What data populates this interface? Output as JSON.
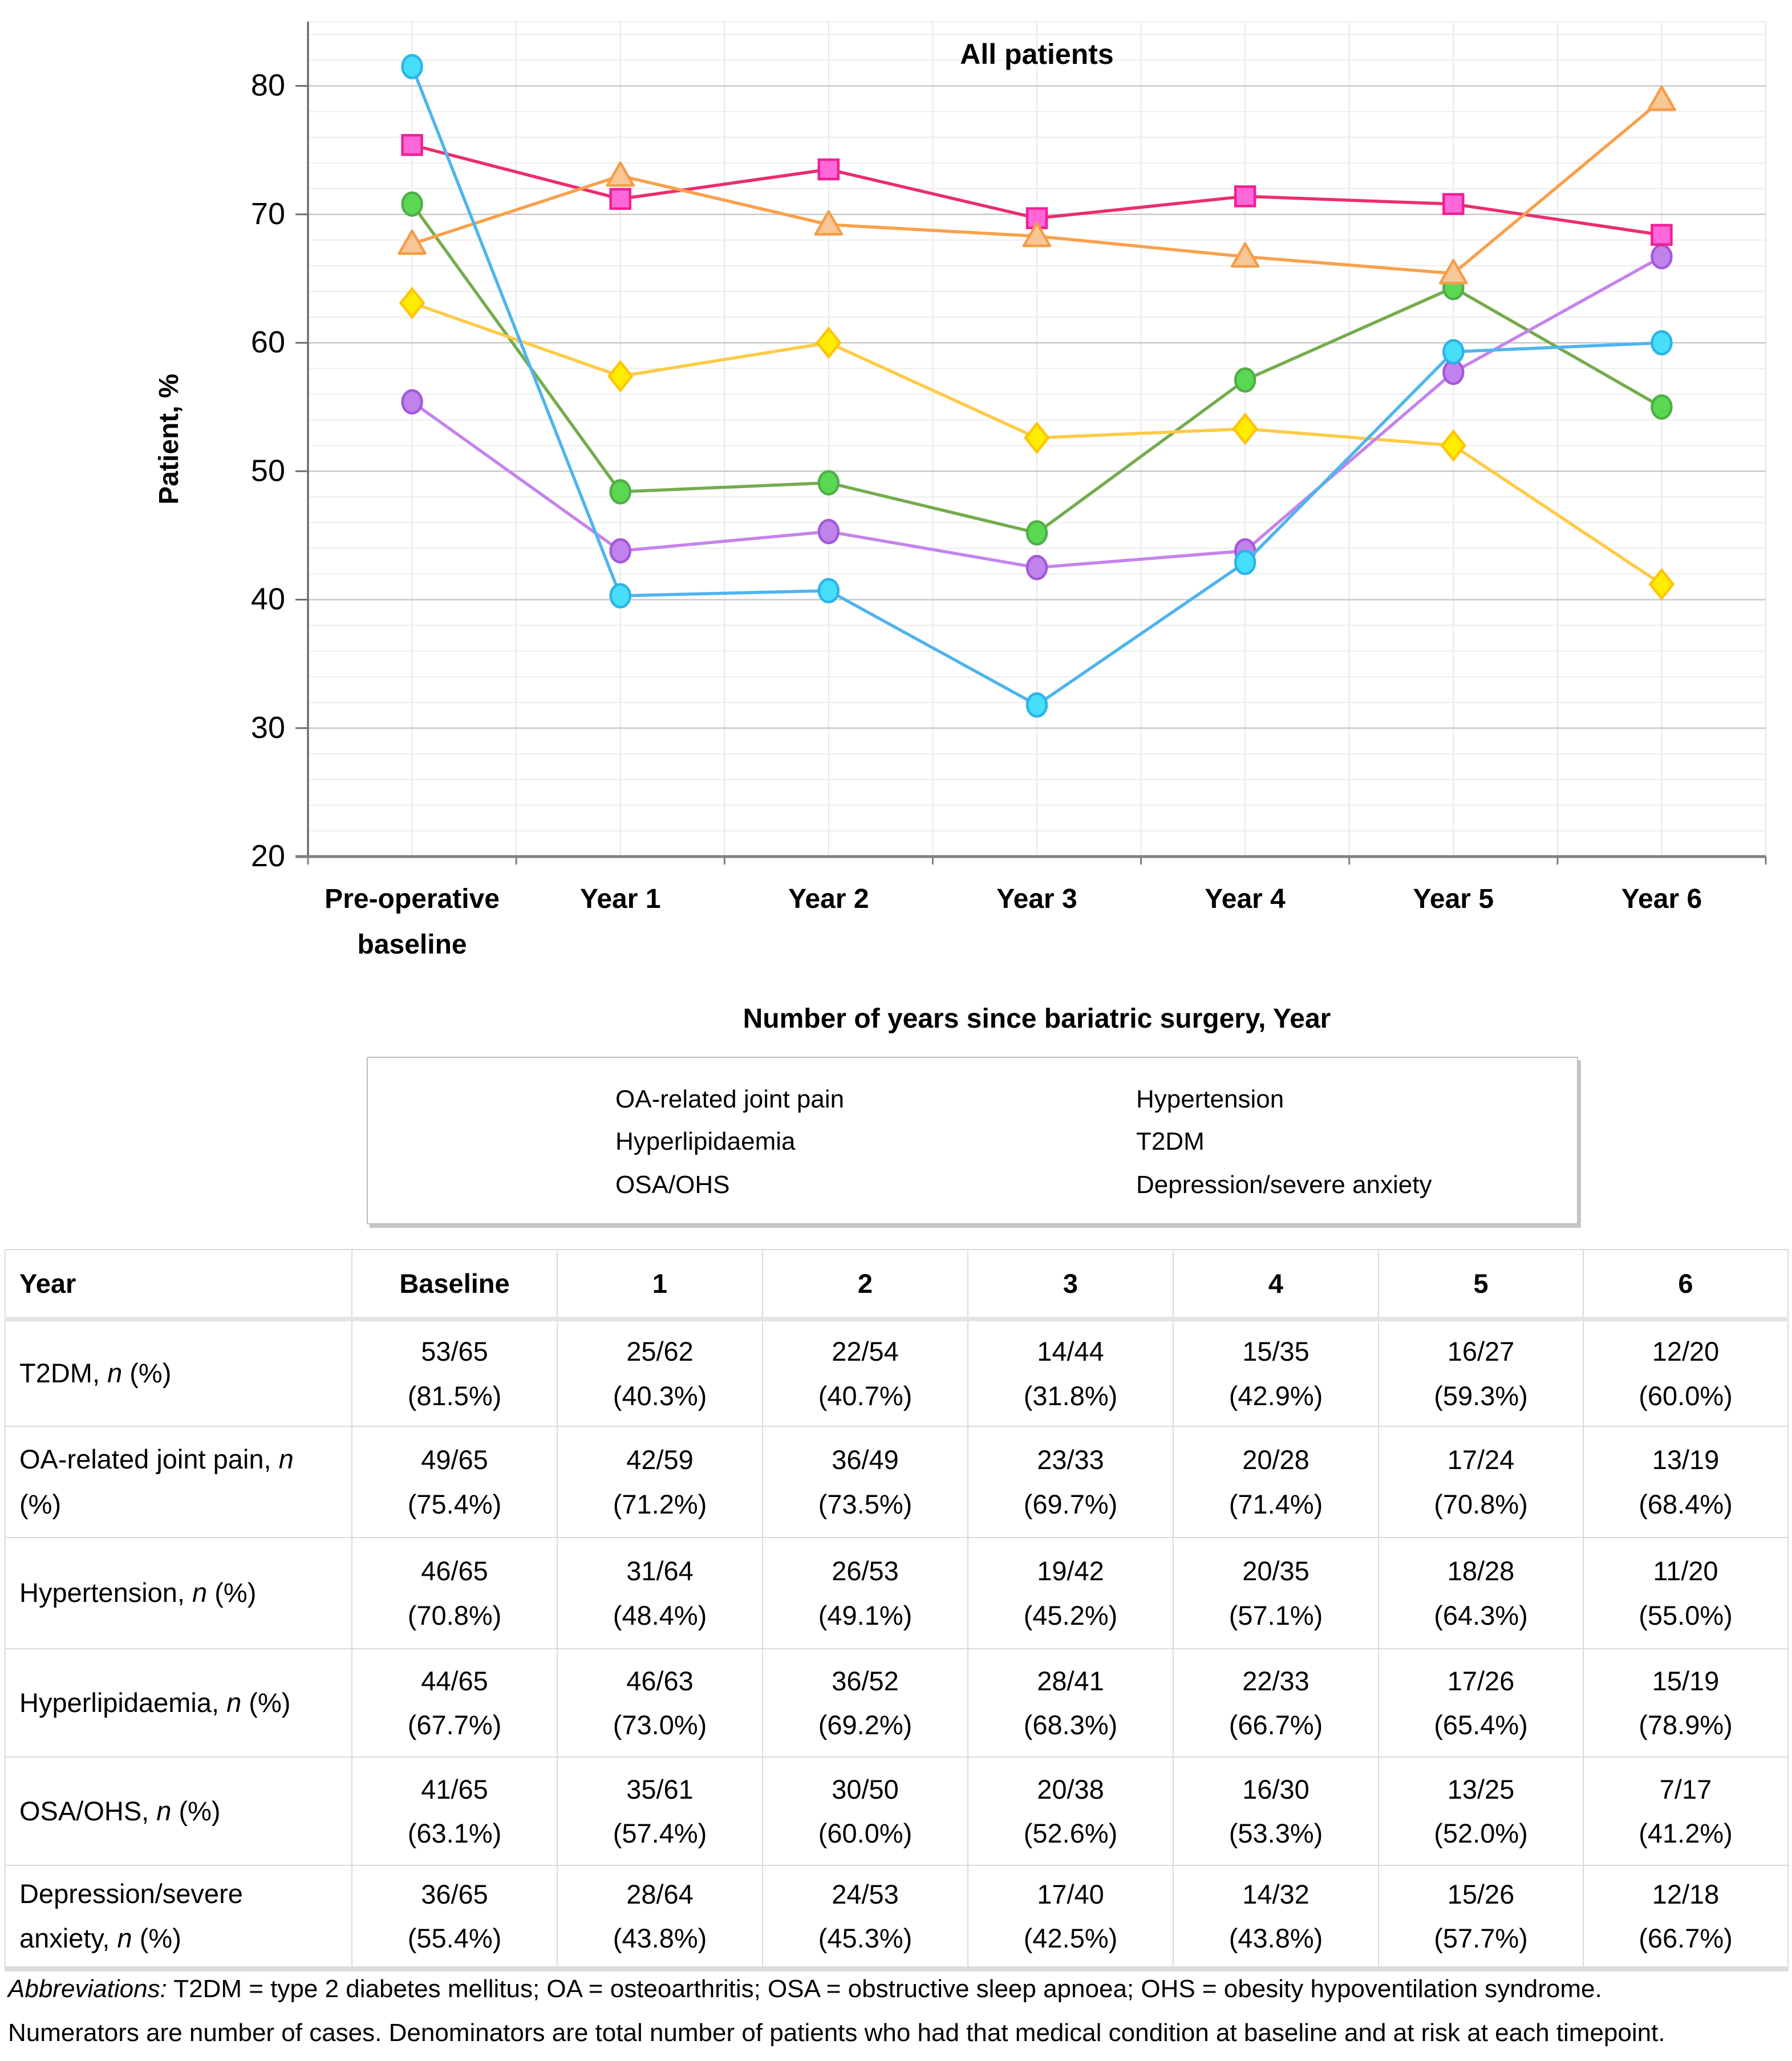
{
  "chart": {
    "title": "All patients",
    "y_axis_title": "Patient, %",
    "x_axis_title": "Number of years since bariatric surgery, Year",
    "y_tick_labels": [
      "20",
      "30",
      "40",
      "50",
      "60",
      "70",
      "80"
    ],
    "x_tick_lines": [
      [
        "Pre-operative",
        "baseline"
      ],
      [
        "Year 1"
      ],
      [
        "Year 2"
      ],
      [
        "Year 3"
      ],
      [
        "Year 4"
      ],
      [
        "Year 5"
      ],
      [
        "Year 6"
      ]
    ]
  },
  "chart_data": {
    "type": "line",
    "title": "All patients",
    "xlabel": "Number of years since bariatric surgery, Year",
    "ylabel": "Patient, %",
    "ylim": [
      20,
      85
    ],
    "y_major_ticks": [
      20,
      30,
      40,
      50,
      60,
      70,
      80
    ],
    "y_minor_unit": 2,
    "grid": "major-and-minor",
    "legend_position": "bottom-box-two-columns",
    "categories": [
      "Pre-operative baseline",
      "Year 1",
      "Year 2",
      "Year 3",
      "Year 4",
      "Year 5",
      "Year 6"
    ],
    "series": [
      {
        "name": "OA-related joint pain",
        "marker": "square",
        "line_color": "#EB2D6E",
        "marker_fill": "#FF66D9",
        "marker_stroke": "#F01F94",
        "values": [
          75.4,
          71.2,
          73.5,
          69.7,
          71.4,
          70.8,
          68.4
        ],
        "legend_column": 0,
        "legend_row": 0
      },
      {
        "name": "Hyperlipidaemia",
        "marker": "triangle",
        "line_color": "#F9A04C",
        "marker_fill": "#F9C795",
        "marker_stroke": "#F59C48",
        "values": [
          67.7,
          73.0,
          69.2,
          68.3,
          66.7,
          65.4,
          78.9
        ],
        "legend_column": 0,
        "legend_row": 1
      },
      {
        "name": "OSA/OHS",
        "marker": "diamond",
        "line_color": "#FFCA45",
        "marker_fill": "#FFEC00",
        "marker_stroke": "#FFC408",
        "values": [
          63.1,
          57.4,
          60.0,
          52.6,
          53.3,
          52.0,
          41.2
        ],
        "legend_column": 0,
        "legend_row": 2
      },
      {
        "name": "Hypertension",
        "marker": "circle",
        "line_color": "#74AC4E",
        "marker_fill": "#5BD853",
        "marker_stroke": "#4FAF46",
        "values": [
          70.8,
          48.4,
          49.1,
          45.2,
          57.1,
          64.3,
          55.0
        ],
        "legend_column": 1,
        "legend_row": 0
      },
      {
        "name": "T2DM",
        "marker": "circle",
        "line_color": "#4FB4EE",
        "marker_fill": "#46DEFB",
        "marker_stroke": "#2AB4E8",
        "values": [
          81.5,
          40.3,
          40.7,
          31.8,
          42.9,
          59.3,
          60.0
        ],
        "legend_column": 1,
        "legend_row": 1
      },
      {
        "name": "Depression/severe anxiety",
        "marker": "circle",
        "line_color": "#C583EC",
        "marker_fill": "#BF83EB",
        "marker_stroke": "#A458D9",
        "values": [
          55.4,
          43.8,
          45.3,
          42.5,
          43.8,
          57.7,
          66.7
        ],
        "legend_column": 1,
        "legend_row": 2
      }
    ]
  },
  "colors": {
    "grid_minor": "#EDEDED",
    "grid_major": "#C9C9C9",
    "grid_vertical": "#E8E8E8",
    "axis_line": "#6E6E6E",
    "x_axis_line": "#7F7F7F",
    "legend_border": "#BDBDBD",
    "table_border": "#DBDBDB"
  },
  "table": {
    "header": [
      "Year",
      "Baseline",
      "1",
      "2",
      "3",
      "4",
      "5",
      "6"
    ],
    "rows": [
      {
        "label": {
          "pre": "T2DM, ",
          "italic": "n",
          "post": " (%)"
        },
        "cells": [
          [
            "53/65",
            "(81.5%)"
          ],
          [
            "25/62",
            "(40.3%)"
          ],
          [
            "22/54",
            "(40.7%)"
          ],
          [
            "14/44",
            "(31.8%)"
          ],
          [
            "15/35",
            "(42.9%)"
          ],
          [
            "16/27",
            "(59.3%)"
          ],
          [
            "12/20",
            "(60.0%)"
          ]
        ]
      },
      {
        "label": {
          "pre": "OA-related joint pain, ",
          "italic": "n",
          "post": " (%)"
        },
        "cells": [
          [
            "49/65",
            "(75.4%)"
          ],
          [
            "42/59",
            "(71.2%)"
          ],
          [
            "36/49",
            "(73.5%)"
          ],
          [
            "23/33",
            "(69.7%)"
          ],
          [
            "20/28",
            "(71.4%)"
          ],
          [
            "17/24",
            "(70.8%)"
          ],
          [
            "13/19",
            "(68.4%)"
          ]
        ]
      },
      {
        "label": {
          "pre": "Hypertension, ",
          "italic": "n",
          "post": " (%)"
        },
        "cells": [
          [
            "46/65",
            "(70.8%)"
          ],
          [
            "31/64",
            "(48.4%)"
          ],
          [
            "26/53",
            "(49.1%)"
          ],
          [
            "19/42",
            "(45.2%)"
          ],
          [
            "20/35",
            "(57.1%)"
          ],
          [
            "18/28",
            "(64.3%)"
          ],
          [
            "11/20",
            "(55.0%)"
          ]
        ]
      },
      {
        "label": {
          "pre": "Hyperlipidaemia, ",
          "italic": "n",
          "post": " (%)"
        },
        "cells": [
          [
            "44/65",
            "(67.7%)"
          ],
          [
            "46/63",
            "(73.0%)"
          ],
          [
            "36/52",
            "(69.2%)"
          ],
          [
            "28/41",
            "(68.3%)"
          ],
          [
            "22/33",
            "(66.7%)"
          ],
          [
            "17/26",
            "(65.4%)"
          ],
          [
            "15/19",
            "(78.9%)"
          ]
        ]
      },
      {
        "label": {
          "pre": "OSA/OHS, ",
          "italic": "n",
          "post": " (%)"
        },
        "cells": [
          [
            "41/65",
            "(63.1%)"
          ],
          [
            "35/61",
            "(57.4%)"
          ],
          [
            "30/50",
            "(60.0%)"
          ],
          [
            "20/38",
            "(52.6%)"
          ],
          [
            "16/30",
            "(53.3%)"
          ],
          [
            "13/25",
            "(52.0%)"
          ],
          [
            "7/17",
            "(41.2%)"
          ]
        ]
      },
      {
        "label": {
          "pre": "Depression/severe anxiety, ",
          "italic": "n",
          "post": " (%)"
        },
        "cells": [
          [
            "36/65",
            "(55.4%)"
          ],
          [
            "28/64",
            "(43.8%)"
          ],
          [
            "24/53",
            "(45.3%)"
          ],
          [
            "17/40",
            "(42.5%)"
          ],
          [
            "14/32",
            "(43.8%)"
          ],
          [
            "15/26",
            "(57.7%)"
          ],
          [
            "12/18",
            "(66.7%)"
          ]
        ]
      }
    ]
  },
  "footer": {
    "abbreviations_label": "Abbreviations:",
    "abbreviations_text": " T2DM = type 2 diabetes mellitus; OA = osteoarthritis; OSA = obstructive sleep apnoea; OHS = obesity hypoventilation syndrome.",
    "note": "Numerators are number of cases. Denominators are total number of patients who had that medical condition at baseline and at risk at each timepoint."
  }
}
